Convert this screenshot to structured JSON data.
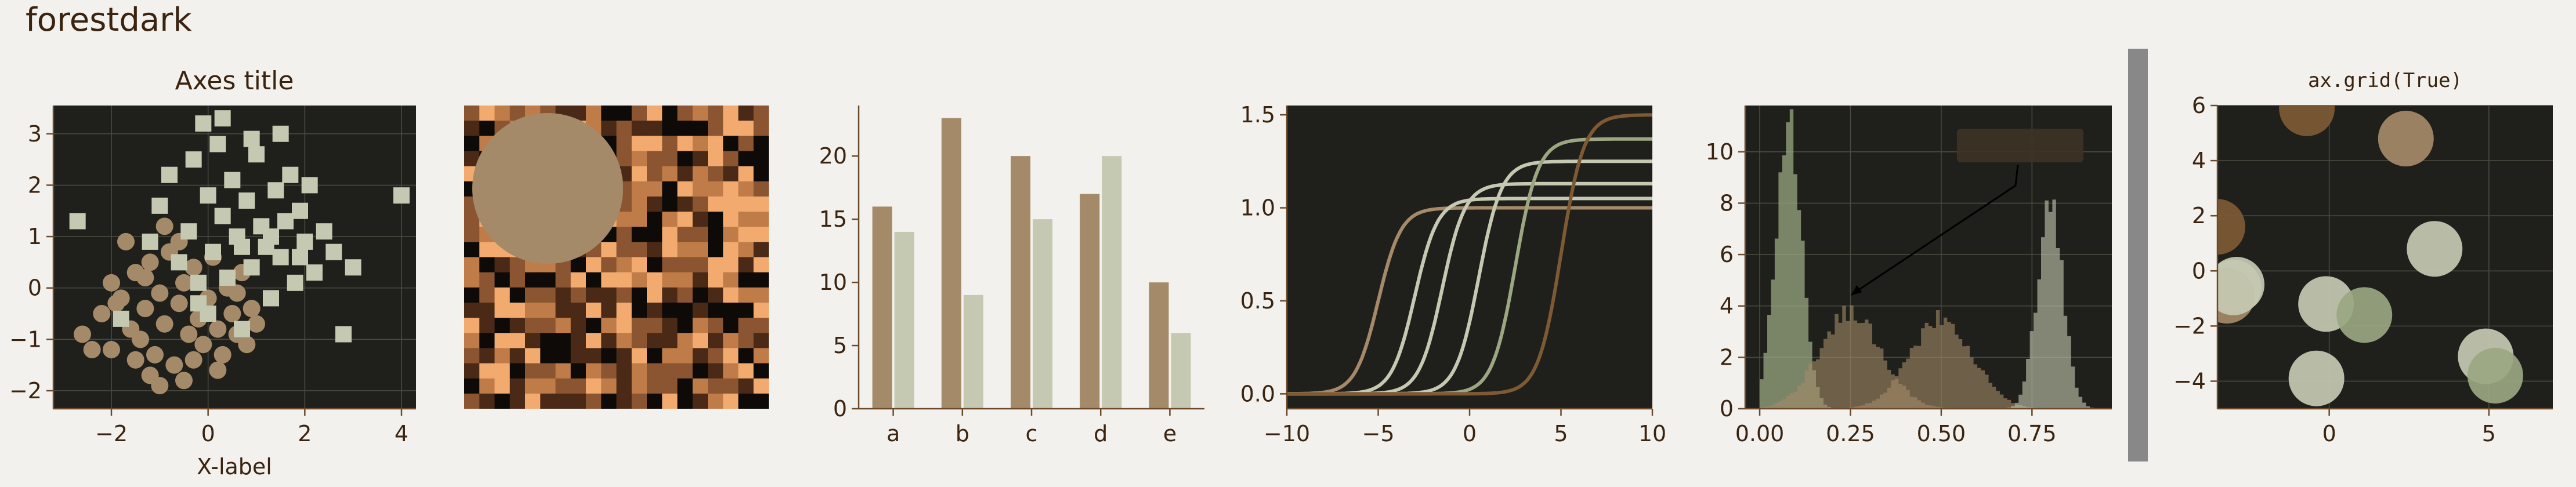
{
  "figure": {
    "title": "forestdark",
    "colors": {
      "background": "#f2f1ed",
      "axes_face": "#1f1f1b",
      "text": "#3a2410",
      "spine": "#6b4a2b",
      "grid": "#4a4a40",
      "c1": "#a48a68",
      "c2": "#c6c9b2",
      "c3": "#7e5a34",
      "c4": "#9aa781",
      "separator": "#888888"
    }
  },
  "chart_data": [
    {
      "type": "scatter",
      "title": "Axes title",
      "xlabel": "X-label",
      "ylabel": "",
      "xlim": [
        -3.2,
        4.3
      ],
      "ylim": [
        -2.35,
        3.55
      ],
      "xticks": [
        -2,
        0,
        2,
        4
      ],
      "yticks": [
        -2,
        -1,
        0,
        1,
        2,
        3
      ],
      "grid": true,
      "series": [
        {
          "marker": "circle",
          "color": "#a48a68",
          "points": [
            [
              -2.6,
              -0.9
            ],
            [
              -2.2,
              -0.5
            ],
            [
              -2.0,
              -1.2
            ],
            [
              -1.8,
              -0.2
            ],
            [
              -1.6,
              -0.8
            ],
            [
              -1.5,
              0.3
            ],
            [
              -1.4,
              -1.0
            ],
            [
              -1.3,
              -0.4
            ],
            [
              -1.2,
              0.5
            ],
            [
              -1.1,
              -1.3
            ],
            [
              -1.0,
              -0.1
            ],
            [
              -0.9,
              -0.7
            ],
            [
              -0.8,
              0.7
            ],
            [
              -0.7,
              -1.5
            ],
            [
              -0.6,
              -0.3
            ],
            [
              -0.5,
              0.1
            ],
            [
              -0.4,
              -0.9
            ],
            [
              -0.3,
              0.4
            ],
            [
              -0.2,
              -0.6
            ],
            [
              -0.1,
              -1.1
            ],
            [
              0.0,
              -0.2
            ],
            [
              0.1,
              0.6
            ],
            [
              0.2,
              -0.8
            ],
            [
              0.3,
              -1.3
            ],
            [
              0.4,
              0.0
            ],
            [
              0.5,
              -0.5
            ],
            [
              0.6,
              -0.9
            ],
            [
              0.7,
              0.3
            ],
            [
              0.8,
              -1.1
            ],
            [
              0.9,
              -0.4
            ],
            [
              1.0,
              -0.7
            ],
            [
              -1.2,
              -1.7
            ],
            [
              -1.0,
              -1.9
            ],
            [
              -0.5,
              -1.8
            ],
            [
              -2.4,
              -1.2
            ],
            [
              -1.7,
              0.9
            ],
            [
              -0.9,
              1.2
            ],
            [
              -1.5,
              -1.4
            ],
            [
              -0.3,
              -1.4
            ],
            [
              0.2,
              -1.6
            ],
            [
              -1.9,
              -0.3
            ],
            [
              -0.6,
              0.9
            ],
            [
              -1.3,
              0.2
            ],
            [
              0.6,
              -0.1
            ],
            [
              -2.0,
              0.1
            ]
          ]
        },
        {
          "marker": "square",
          "color": "#c6c9b2",
          "points": [
            [
              -2.7,
              1.3
            ],
            [
              -1.8,
              -0.6
            ],
            [
              -1.2,
              0.9
            ],
            [
              -1.0,
              1.6
            ],
            [
              -0.8,
              2.2
            ],
            [
              -0.6,
              0.5
            ],
            [
              -0.4,
              1.1
            ],
            [
              -0.3,
              2.5
            ],
            [
              -0.2,
              -0.3
            ],
            [
              -0.1,
              3.2
            ],
            [
              0.0,
              1.8
            ],
            [
              0.1,
              0.7
            ],
            [
              0.2,
              2.8
            ],
            [
              0.3,
              1.4
            ],
            [
              0.4,
              0.2
            ],
            [
              0.5,
              2.1
            ],
            [
              0.6,
              1.0
            ],
            [
              0.7,
              -0.8
            ],
            [
              0.8,
              1.7
            ],
            [
              0.9,
              0.4
            ],
            [
              1.0,
              2.6
            ],
            [
              1.1,
              1.2
            ],
            [
              1.2,
              0.8
            ],
            [
              1.3,
              -0.2
            ],
            [
              1.4,
              1.9
            ],
            [
              1.5,
              0.6
            ],
            [
              1.6,
              1.3
            ],
            [
              1.7,
              2.2
            ],
            [
              1.8,
              0.1
            ],
            [
              1.9,
              1.5
            ],
            [
              2.0,
              0.9
            ],
            [
              2.1,
              2.0
            ],
            [
              2.2,
              0.3
            ],
            [
              2.4,
              1.1
            ],
            [
              2.6,
              0.7
            ],
            [
              2.8,
              -0.9
            ],
            [
              3.0,
              0.4
            ],
            [
              4.0,
              1.8
            ],
            [
              1.5,
              3.0
            ],
            [
              0.3,
              3.3
            ],
            [
              -0.2,
              0.1
            ],
            [
              0.9,
              2.9
            ],
            [
              1.3,
              1.0
            ],
            [
              0.0,
              -0.5
            ],
            [
              0.7,
              0.8
            ],
            [
              1.9,
              0.6
            ]
          ]
        }
      ]
    },
    {
      "type": "heatmap",
      "rows": 20,
      "cols": 20,
      "colormap": [
        "#0e0a08",
        "#4a2a16",
        "#8a5530",
        "#c07c48",
        "#f2aa6e"
      ],
      "overlay": "circle",
      "overlay_color": "#a48a68"
    },
    {
      "type": "bar",
      "categories": [
        "a",
        "b",
        "c",
        "d",
        "e"
      ],
      "ylim": [
        0,
        24
      ],
      "yticks": [
        0,
        5,
        10,
        15,
        20
      ],
      "grid": false,
      "series": [
        {
          "color": "#a48a68",
          "values": [
            16,
            23,
            20,
            17,
            10
          ]
        },
        {
          "color": "#c6c9b2",
          "values": [
            14,
            9,
            15,
            20,
            6
          ]
        }
      ]
    },
    {
      "type": "line",
      "xlim": [
        -10,
        10
      ],
      "ylim": [
        -0.08,
        1.55
      ],
      "xticks": [
        -10,
        -5,
        0,
        5,
        10
      ],
      "yticks": [
        0.0,
        0.5,
        1.0,
        1.5
      ],
      "grid": false,
      "series": [
        {
          "color": "#a48a68",
          "center": -5,
          "amplitude": 1.0
        },
        {
          "color": "#c6c9b2",
          "center": -3,
          "amplitude": 1.05
        },
        {
          "color": "#c6c9b2",
          "center": -1.5,
          "amplitude": 1.13
        },
        {
          "color": "#c6c9b2",
          "center": 0.5,
          "amplitude": 1.25
        },
        {
          "color": "#9aa781",
          "center": 2.5,
          "amplitude": 1.37
        },
        {
          "color": "#7e5a34",
          "center": 5,
          "amplitude": 1.5
        }
      ]
    },
    {
      "type": "area",
      "xlim": [
        -0.04,
        0.97
      ],
      "ylim": [
        0,
        11.8
      ],
      "xticks": [
        0.0,
        0.25,
        0.5,
        0.75
      ],
      "yticks": [
        0,
        2,
        4,
        6,
        8,
        10
      ],
      "grid": true,
      "series": [
        {
          "color": "#9aa781",
          "opacity": 0.75,
          "mean": 0.08,
          "sd": 0.035,
          "peak": 11.2
        },
        {
          "color": "#a48a68",
          "opacity": 0.6,
          "mean": 0.25,
          "sd": 0.085,
          "peak": 3.7
        },
        {
          "color": "#a48a68",
          "opacity": 0.6,
          "mean": 0.5,
          "sd": 0.085,
          "peak": 3.5
        },
        {
          "color": "#c6c9b2",
          "opacity": 0.6,
          "mean": 0.8,
          "sd": 0.035,
          "peak": 8.0
        }
      ],
      "annotation": {
        "x": 0.25,
        "y": 4.4,
        "text_x": 0.72,
        "text_y": 9.6
      }
    },
    {
      "type": "scatter",
      "title": "ax.grid(True)",
      "xlim": [
        -3.5,
        7.0
      ],
      "ylim": [
        -5.0,
        6.0
      ],
      "xticks": [
        0,
        5
      ],
      "yticks": [
        -4,
        -2,
        0,
        2,
        4,
        6
      ],
      "grid": true,
      "points": [
        {
          "x": -0.7,
          "y": 5.9,
          "color": "#7e5a34"
        },
        {
          "x": 2.4,
          "y": 4.8,
          "color": "#a48a68"
        },
        {
          "x": -3.5,
          "y": 1.6,
          "color": "#7e5a34"
        },
        {
          "x": 3.3,
          "y": 0.8,
          "color": "#c6c9b2"
        },
        {
          "x": -2.9,
          "y": -0.5,
          "color": "#c6c9b2"
        },
        {
          "x": -3.2,
          "y": -0.9,
          "color": "#a48a68"
        },
        {
          "x": -3.0,
          "y": -0.6,
          "color": "#c6c9b2"
        },
        {
          "x": -0.1,
          "y": -1.2,
          "color": "#c6c9b2"
        },
        {
          "x": 1.1,
          "y": -1.6,
          "color": "#9aa781"
        },
        {
          "x": 4.9,
          "y": -3.1,
          "color": "#c6c9b2"
        },
        {
          "x": -0.4,
          "y": -3.9,
          "color": "#c6c9b2"
        },
        {
          "x": 5.2,
          "y": -3.8,
          "color": "#9aa781"
        }
      ]
    }
  ]
}
